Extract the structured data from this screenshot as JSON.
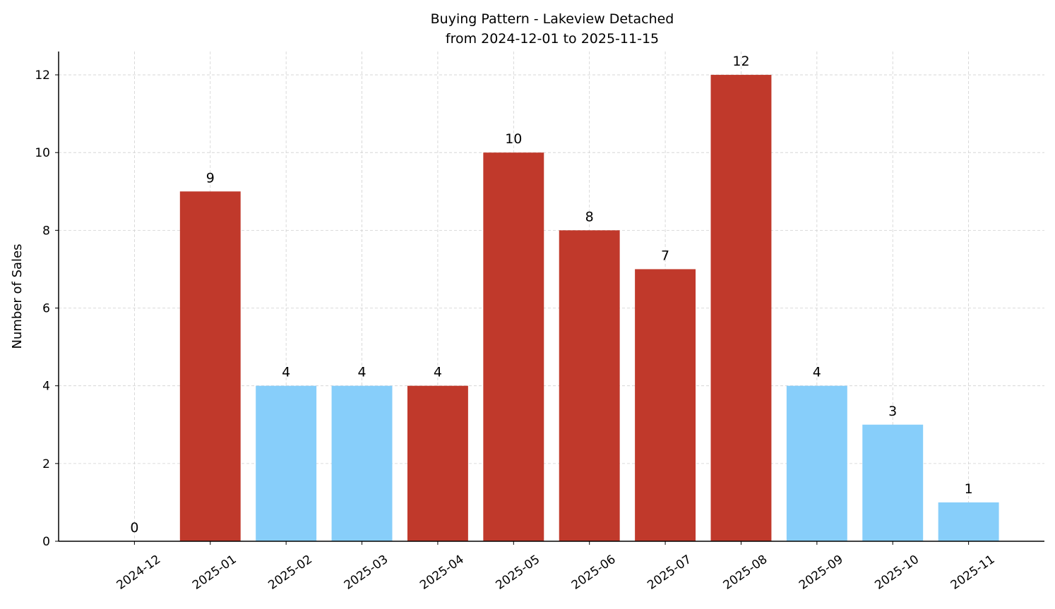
{
  "chart_data": {
    "type": "bar",
    "title": "Buying Pattern - Lakeview Detached",
    "subtitle": "from 2024-12-01 to 2025-11-15",
    "y_label": "Number of Sales",
    "categories": [
      "2024-12",
      "2025-01",
      "2025-02",
      "2025-03",
      "2025-04",
      "2025-05",
      "2025-06",
      "2025-07",
      "2025-08",
      "2025-09",
      "2025-10",
      "2025-11"
    ],
    "values": [
      0,
      9,
      4,
      4,
      4,
      10,
      8,
      7,
      12,
      4,
      3,
      1
    ],
    "colors": [
      "#c0392b",
      "#c0392b",
      "#87cefa",
      "#87cefa",
      "#c0392b",
      "#c0392b",
      "#c0392b",
      "#c0392b",
      "#c0392b",
      "#87cefa",
      "#87cefa",
      "#87cefa"
    ],
    "ylim": [
      0,
      12.6
    ],
    "yticks": [
      0,
      2,
      4,
      6,
      8,
      10,
      12
    ],
    "grid": true
  }
}
